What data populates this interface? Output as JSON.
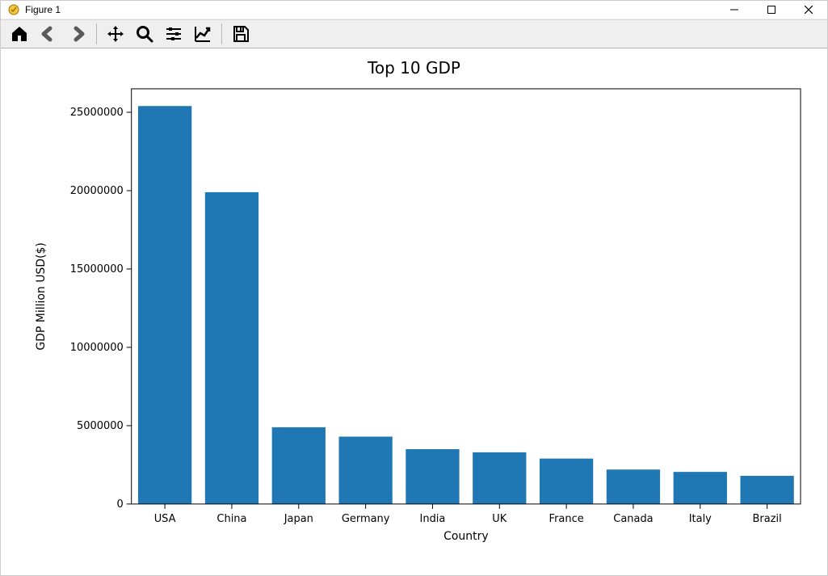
{
  "window": {
    "title": "Figure 1"
  },
  "toolbar": {
    "icons": [
      "home",
      "back",
      "forward",
      "sep",
      "pan",
      "zoom",
      "subplots",
      "axes",
      "sep",
      "save"
    ]
  },
  "chart": {
    "type": "bar",
    "title": "Top 10 GDP",
    "title_fontsize": 20,
    "xlabel": "Country",
    "ylabel": "GDP Million USD($)",
    "label_fontsize": 14,
    "tick_fontsize": 13,
    "categories": [
      "USA",
      "China",
      "Japan",
      "Germany",
      "India",
      "UK",
      "France",
      "Canada",
      "Italy",
      "Brazil"
    ],
    "values": [
      25400000,
      19900000,
      4900000,
      4300000,
      3500000,
      3300000,
      2900000,
      2200000,
      2050000,
      1800000
    ],
    "bar_color": "#1f77b4",
    "bar_width": 0.8,
    "ylim": [
      0,
      26500000
    ],
    "yticks": [
      0,
      5000000,
      10000000,
      15000000,
      20000000,
      25000000
    ],
    "ytick_labels": [
      "0",
      "5000000",
      "10000000",
      "15000000",
      "20000000",
      "25000000"
    ],
    "background_color": "#ffffff",
    "axes_border_color": "#000000",
    "axes_border_width": 1.0,
    "font_family": "DejaVu Sans"
  }
}
